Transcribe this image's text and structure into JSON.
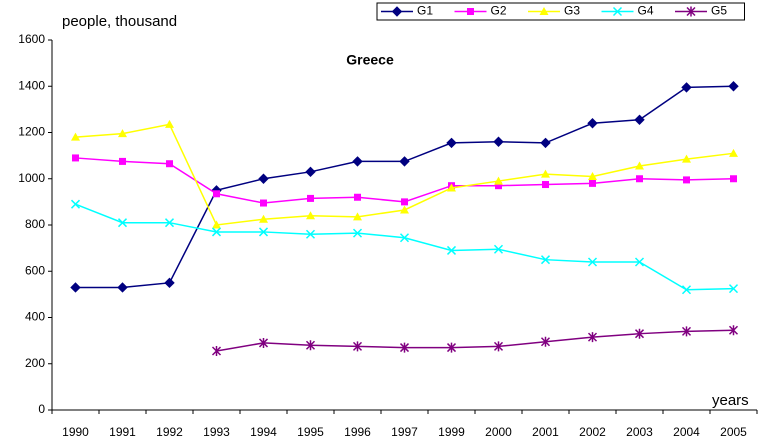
{
  "chart_data": {
    "type": "line",
    "title": "Greece",
    "ylabel": "people, thousand",
    "xlabel": "years",
    "categories": [
      "1990",
      "1991",
      "1992",
      "1993",
      "1994",
      "1995",
      "1996",
      "1997",
      "1999",
      "2000",
      "2001",
      "2002",
      "2003",
      "2004",
      "2005"
    ],
    "series": [
      {
        "name": "G1",
        "color": "#000080",
        "marker": "diamond",
        "values": [
          530,
          530,
          550,
          950,
          1000,
          1030,
          1075,
          1075,
          1155,
          1160,
          1155,
          1240,
          1255,
          1395,
          1400
        ]
      },
      {
        "name": "G2",
        "color": "#ff00ff",
        "marker": "square",
        "values": [
          1090,
          1075,
          1065,
          935,
          895,
          915,
          920,
          900,
          970,
          970,
          975,
          980,
          1000,
          995,
          1000
        ]
      },
      {
        "name": "G3",
        "color": "#ffff00",
        "marker": "triangle",
        "values": [
          1180,
          1195,
          1235,
          800,
          825,
          840,
          835,
          865,
          960,
          990,
          1020,
          1010,
          1055,
          1085,
          1110
        ]
      },
      {
        "name": "G4",
        "color": "#00ffff",
        "marker": "x",
        "values": [
          890,
          810,
          810,
          770,
          770,
          760,
          765,
          745,
          690,
          695,
          650,
          640,
          640,
          520,
          525
        ]
      },
      {
        "name": "G5",
        "color": "#800080",
        "marker": "star",
        "values": [
          null,
          null,
          null,
          255,
          290,
          280,
          275,
          270,
          270,
          275,
          295,
          315,
          330,
          340,
          345
        ]
      }
    ],
    "ylim": [
      0,
      1600
    ],
    "yticks": [
      0,
      200,
      400,
      600,
      800,
      1000,
      1200,
      1400,
      1600
    ],
    "legend": "top-right"
  }
}
